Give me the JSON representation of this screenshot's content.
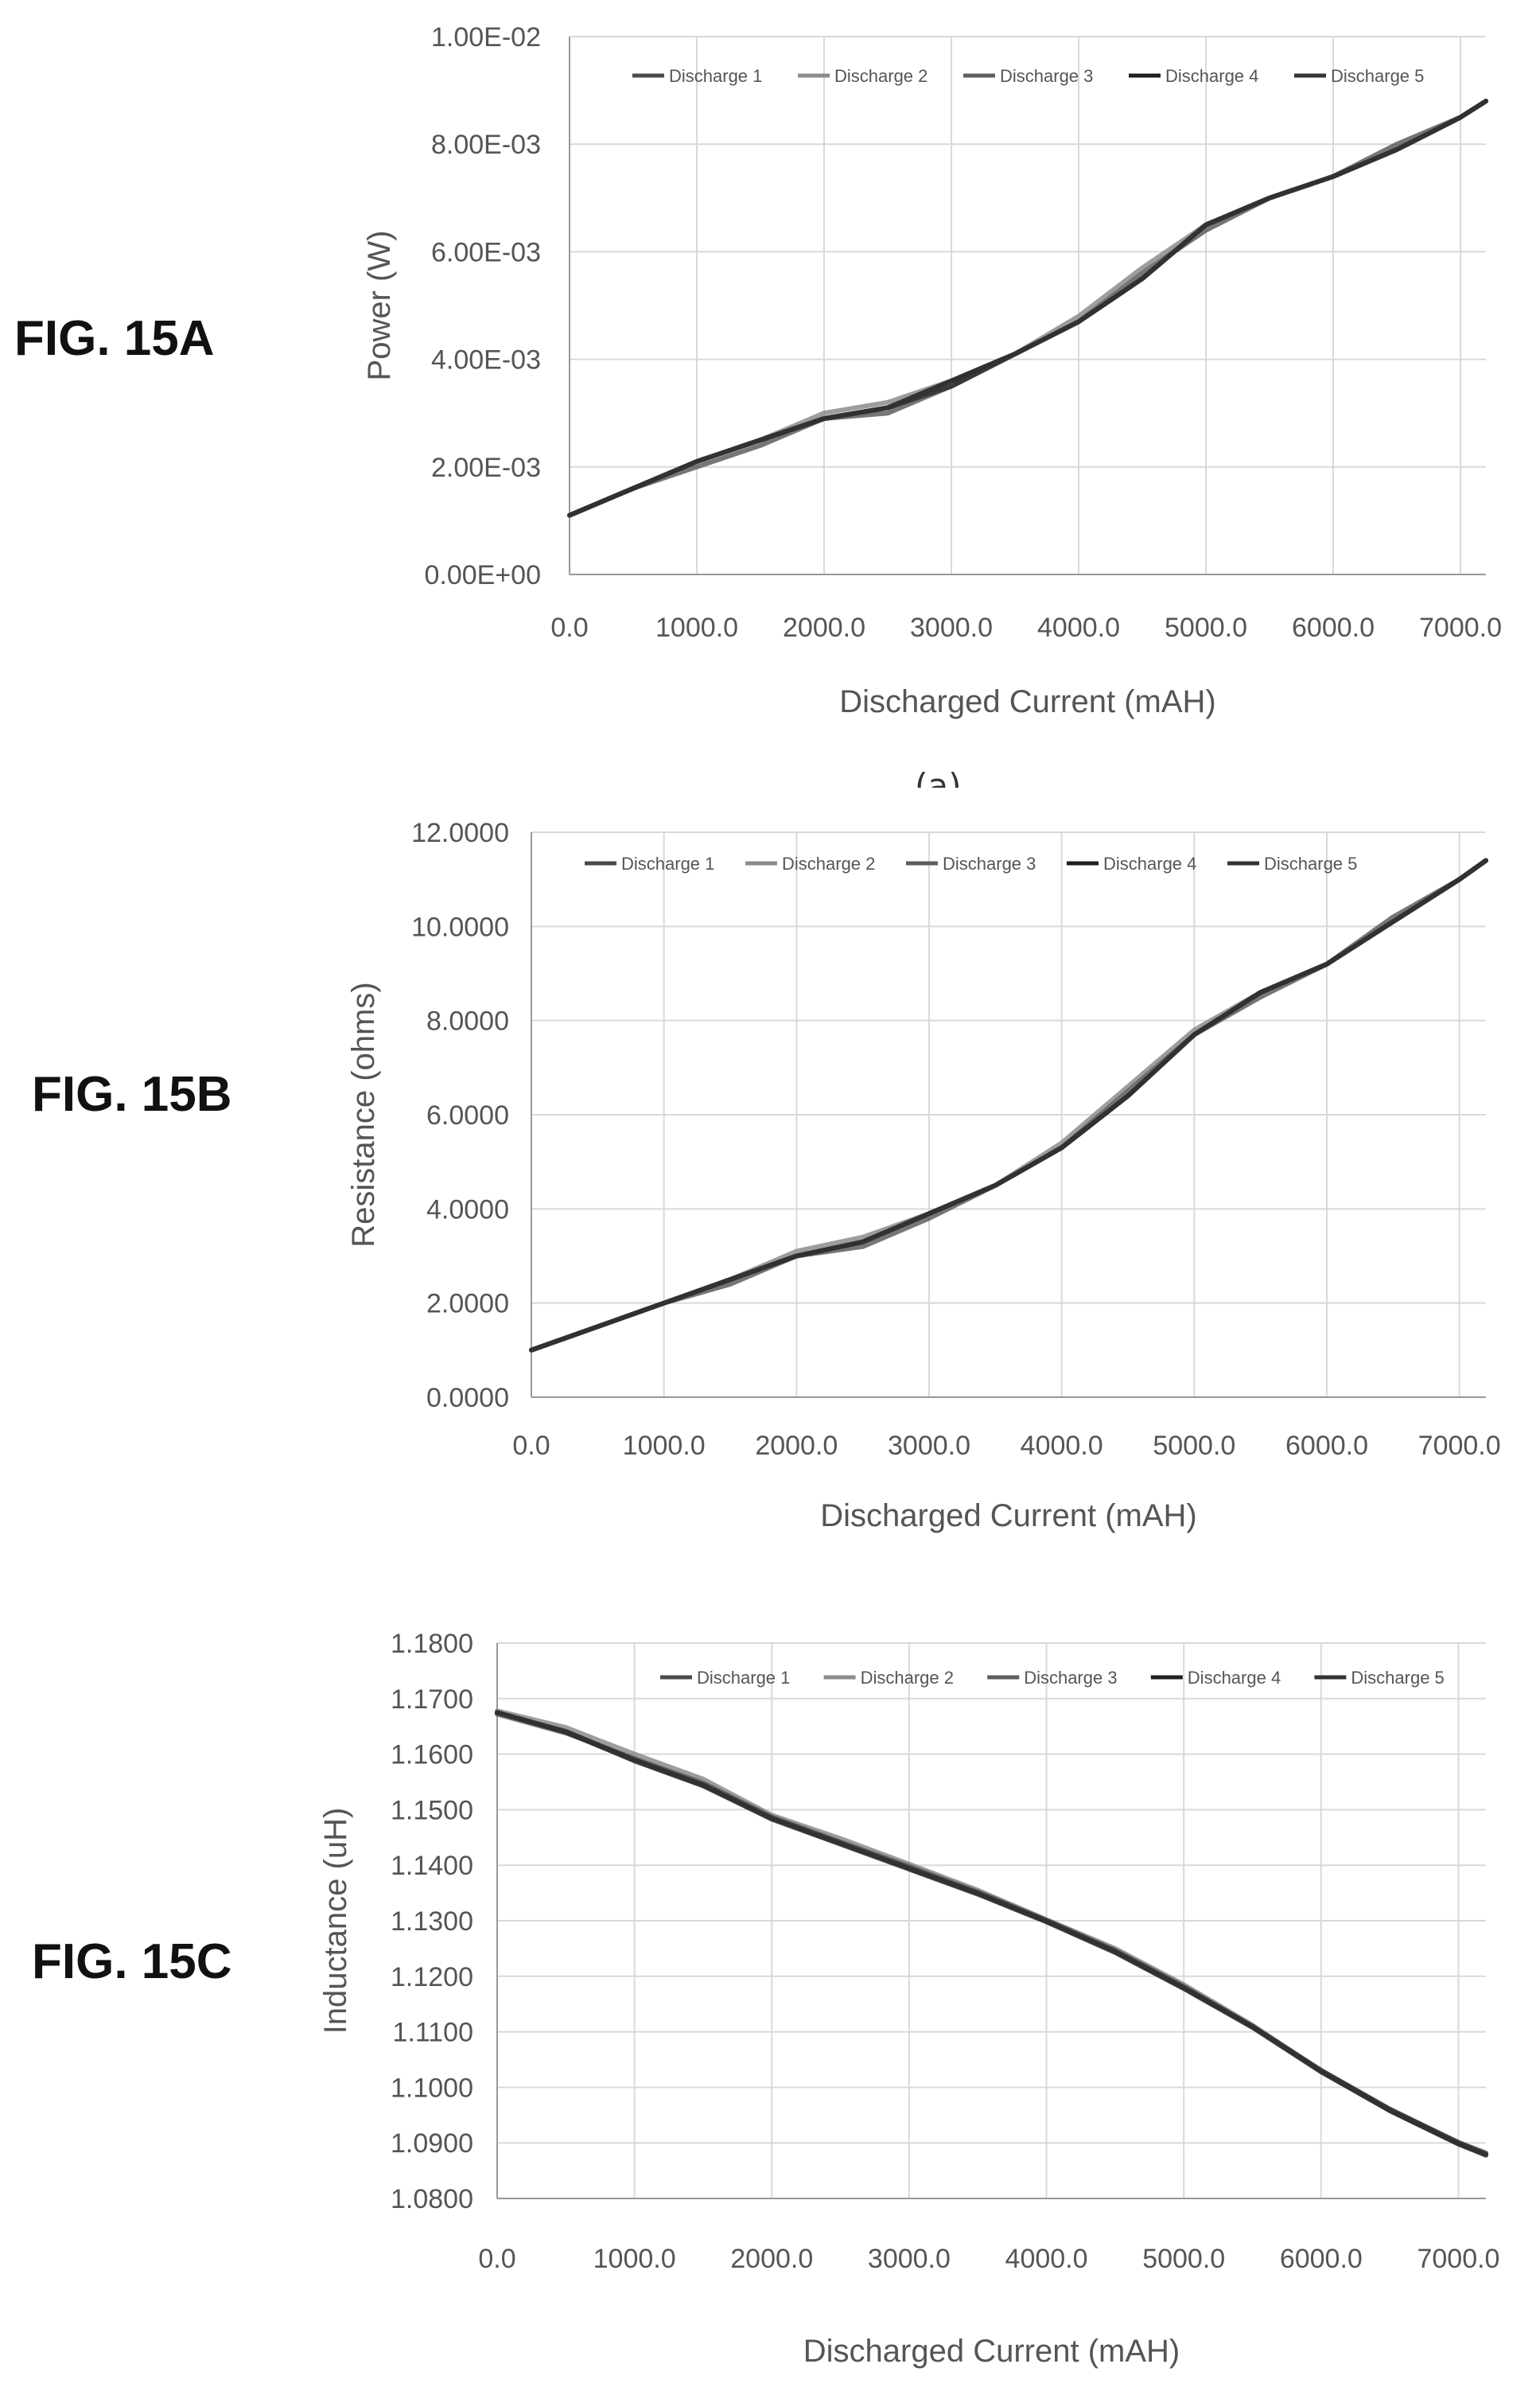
{
  "figures": {
    "a": "FIG. 15A",
    "b": "FIG. 15B",
    "c": "FIG. 15C",
    "a_caption_fragment": "(a)"
  },
  "colors": {
    "grid": "#d9d9d9",
    "axis": "#999999",
    "series": [
      "#4a4a4a",
      "#8c8c8c",
      "#5e5e5e",
      "#1f1f1f",
      "#333333"
    ]
  },
  "chart_data": [
    {
      "type": "line",
      "figure": "FIG. 15A",
      "xlabel": "Discharged Current (mAH)",
      "ylabel": "Power (W)",
      "xlim": [
        0,
        7200
      ],
      "ylim": [
        0,
        0.01
      ],
      "xticks": [
        "0.0",
        "1000.0",
        "2000.0",
        "3000.0",
        "4000.0",
        "5000.0",
        "6000.0",
        "7000.0"
      ],
      "yticks": [
        "0.00E+00",
        "2.00E-03",
        "4.00E-03",
        "6.00E-03",
        "8.00E-03",
        "1.00E-02"
      ],
      "grid": true,
      "legend_position": "top",
      "x": [
        0,
        500,
        1000,
        1500,
        2000,
        2500,
        3000,
        3500,
        4000,
        4500,
        5000,
        5500,
        6000,
        6500,
        7000,
        7200
      ],
      "series": [
        {
          "name": "Discharge 1",
          "values": [
            0.0011,
            0.0016,
            0.0021,
            0.0025,
            0.0029,
            0.0031,
            0.0035,
            0.0041,
            0.0047,
            0.0055,
            0.0065,
            0.007,
            0.0074,
            0.0079,
            0.0085,
            0.0088
          ]
        },
        {
          "name": "Discharge 2",
          "values": [
            0.0011,
            0.0016,
            0.0021,
            0.0025,
            0.003,
            0.0032,
            0.0036,
            0.0041,
            0.0048,
            0.0057,
            0.0065,
            0.007,
            0.0074,
            0.0079,
            0.0085,
            0.0088
          ]
        },
        {
          "name": "Discharge 3",
          "values": [
            0.0011,
            0.0016,
            0.002,
            0.0024,
            0.0029,
            0.003,
            0.0035,
            0.0041,
            0.0047,
            0.0056,
            0.0064,
            0.007,
            0.0074,
            0.008,
            0.0085,
            0.0088
          ]
        },
        {
          "name": "Discharge 4",
          "values": [
            0.0011,
            0.0016,
            0.0021,
            0.0025,
            0.0029,
            0.0031,
            0.0036,
            0.0041,
            0.0047,
            0.0055,
            0.0065,
            0.007,
            0.0074,
            0.0079,
            0.0085,
            0.0088
          ]
        },
        {
          "name": "Discharge 5",
          "values": [
            0.0011,
            0.0016,
            0.0021,
            0.0025,
            0.0029,
            0.0031,
            0.0035,
            0.0041,
            0.0047,
            0.0055,
            0.0065,
            0.007,
            0.0074,
            0.0079,
            0.0085,
            0.0088
          ]
        }
      ]
    },
    {
      "type": "line",
      "figure": "FIG. 15B",
      "xlabel": "Discharged Current (mAH)",
      "ylabel": "Resistance (ohms)",
      "xlim": [
        0,
        7200
      ],
      "ylim": [
        0,
        12
      ],
      "xticks": [
        "0.0",
        "1000.0",
        "2000.0",
        "3000.0",
        "4000.0",
        "5000.0",
        "6000.0",
        "7000.0"
      ],
      "yticks": [
        "0.0000",
        "2.0000",
        "4.0000",
        "6.0000",
        "8.0000",
        "10.0000",
        "12.0000"
      ],
      "grid": true,
      "legend_position": "top",
      "x": [
        0,
        500,
        1000,
        1500,
        2000,
        2500,
        3000,
        3500,
        4000,
        4500,
        5000,
        5500,
        6000,
        6500,
        7000,
        7200
      ],
      "series": [
        {
          "name": "Discharge 1",
          "values": [
            1.0,
            1.5,
            2.0,
            2.5,
            3.0,
            3.3,
            3.9,
            4.5,
            5.3,
            6.4,
            7.7,
            8.6,
            9.2,
            10.1,
            11.0,
            11.4
          ]
        },
        {
          "name": "Discharge 2",
          "values": [
            1.0,
            1.5,
            2.0,
            2.5,
            3.1,
            3.4,
            3.9,
            4.5,
            5.4,
            6.6,
            7.8,
            8.6,
            9.2,
            10.1,
            11.0,
            11.4
          ]
        },
        {
          "name": "Discharge 3",
          "values": [
            1.0,
            1.5,
            2.0,
            2.4,
            3.0,
            3.2,
            3.8,
            4.5,
            5.3,
            6.5,
            7.7,
            8.5,
            9.2,
            10.2,
            11.0,
            11.4
          ]
        },
        {
          "name": "Discharge 4",
          "values": [
            1.0,
            1.5,
            2.0,
            2.5,
            3.0,
            3.3,
            3.9,
            4.5,
            5.3,
            6.4,
            7.7,
            8.6,
            9.2,
            10.1,
            11.0,
            11.4
          ]
        },
        {
          "name": "Discharge 5",
          "values": [
            1.0,
            1.5,
            2.0,
            2.5,
            3.0,
            3.3,
            3.9,
            4.5,
            5.3,
            6.4,
            7.7,
            8.6,
            9.2,
            10.1,
            11.0,
            11.4
          ]
        }
      ]
    },
    {
      "type": "line",
      "figure": "FIG. 15C",
      "xlabel": "Discharged Current (mAH)",
      "ylabel": "Inductance (uH)",
      "xlim": [
        0,
        7200
      ],
      "ylim": [
        1.08,
        1.18
      ],
      "xticks": [
        "0.0",
        "1000.0",
        "2000.0",
        "3000.0",
        "4000.0",
        "5000.0",
        "6000.0",
        "7000.0"
      ],
      "yticks": [
        "1.0800",
        "1.0900",
        "1.1000",
        "1.1100",
        "1.1200",
        "1.1300",
        "1.1400",
        "1.1500",
        "1.1600",
        "1.1700",
        "1.1800"
      ],
      "grid": true,
      "legend_position": "top-right",
      "x": [
        0,
        500,
        1000,
        1500,
        2000,
        2500,
        3000,
        3500,
        4000,
        4500,
        5000,
        5500,
        6000,
        6500,
        7000,
        7200
      ],
      "series": [
        {
          "name": "Discharge 1",
          "values": [
            1.1675,
            1.164,
            1.159,
            1.1545,
            1.1485,
            1.144,
            1.1395,
            1.135,
            1.13,
            1.1245,
            1.118,
            1.111,
            1.103,
            1.096,
            1.09,
            1.088
          ]
        },
        {
          "name": "Discharge 2",
          "values": [
            1.1678,
            1.1648,
            1.16,
            1.1555,
            1.149,
            1.1448,
            1.1402,
            1.1355,
            1.1302,
            1.125,
            1.1185,
            1.1112,
            1.103,
            1.0958,
            1.0898,
            1.088
          ]
        },
        {
          "name": "Discharge 3",
          "values": [
            1.1672,
            1.1638,
            1.1592,
            1.1548,
            1.1487,
            1.1442,
            1.1398,
            1.1352,
            1.1301,
            1.1247,
            1.1182,
            1.111,
            1.1031,
            1.0961,
            1.0901,
            1.0882
          ]
        },
        {
          "name": "Discharge 4",
          "values": [
            1.1675,
            1.164,
            1.1588,
            1.1543,
            1.1483,
            1.1438,
            1.1393,
            1.1348,
            1.1298,
            1.1243,
            1.1178,
            1.1108,
            1.1028,
            1.0958,
            1.0898,
            1.0878
          ]
        },
        {
          "name": "Discharge 5",
          "values": [
            1.1675,
            1.1641,
            1.159,
            1.1545,
            1.1485,
            1.144,
            1.1395,
            1.135,
            1.13,
            1.1245,
            1.118,
            1.111,
            1.103,
            1.096,
            1.09,
            1.088
          ]
        }
      ]
    }
  ]
}
